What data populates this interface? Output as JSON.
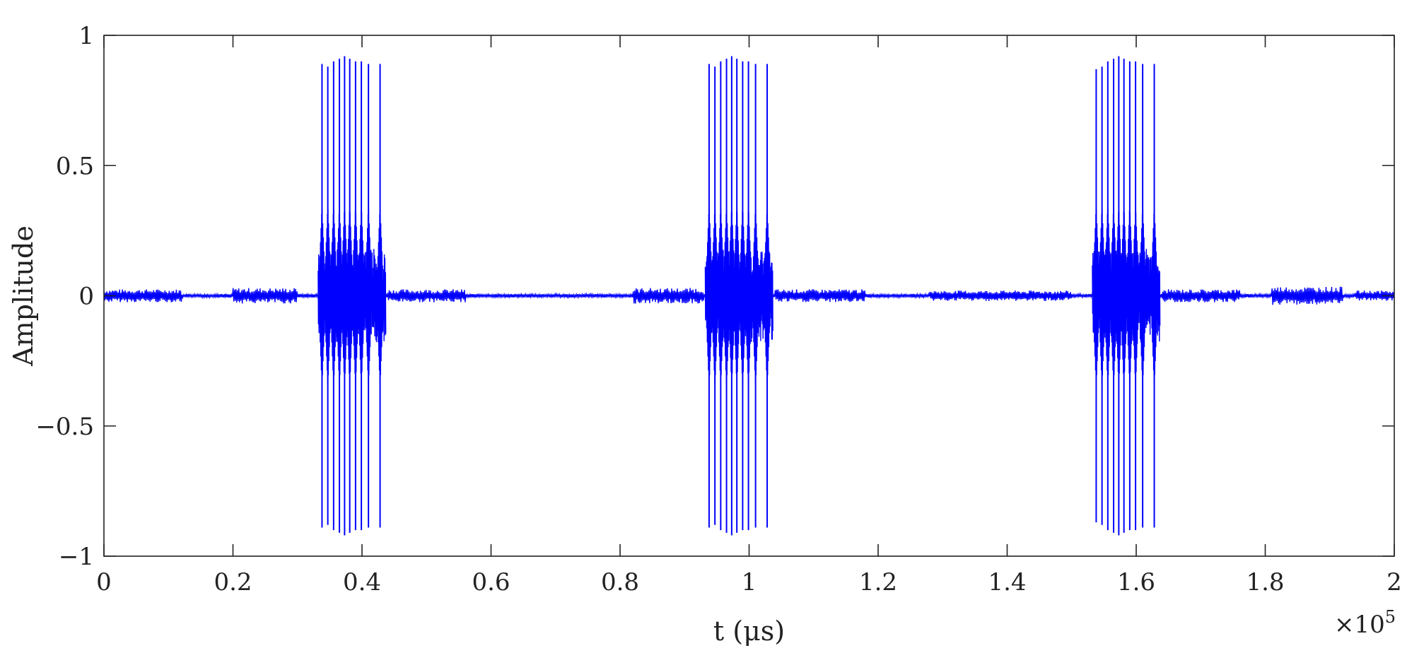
{
  "chart_data": {
    "type": "line",
    "title": "",
    "xlabel": "t (μs)",
    "ylabel": "Amplitude",
    "x_exponent_label": "×10",
    "x_exponent_power": "5",
    "x_scale": 100000,
    "xlim": [
      0,
      200000
    ],
    "ylim": [
      -1,
      1
    ],
    "grid": false,
    "line_color": "#0000ff",
    "axis_color": "#222222",
    "x_ticks": [
      0,
      0.2,
      0.4,
      0.6,
      0.8,
      1,
      1.2,
      1.4,
      1.6,
      1.8,
      2
    ],
    "x_tick_labels": [
      "0",
      "0.2",
      "0.4",
      "0.6",
      "0.8",
      "1",
      "1.2",
      "1.4",
      "1.6",
      "1.8",
      "2"
    ],
    "y_ticks": [
      1,
      0.5,
      0,
      -0.5,
      -1
    ],
    "y_tick_labels": [
      "1",
      "0.5",
      "0",
      "−0.5",
      "−1"
    ],
    "series": [
      {
        "bursts": [
          {
            "pulses_x": [
              33800,
              34700,
              35600,
              36500,
              37300,
              38100,
              39000,
              39900,
              41000,
              42800
            ],
            "pulses_peak": [
              0.89,
              0.88,
              0.9,
              0.91,
              0.92,
              0.91,
              0.9,
              0.9,
              0.89,
              0.89
            ]
          },
          {
            "pulses_x": [
              93800,
              94700,
              95600,
              96500,
              97300,
              98100,
              99000,
              99900,
              101000,
              102800
            ],
            "pulses_peak": [
              0.89,
              0.88,
              0.9,
              0.91,
              0.92,
              0.91,
              0.9,
              0.9,
              0.89,
              0.89
            ]
          },
          {
            "pulses_x": [
              153800,
              154700,
              155600,
              156500,
              157300,
              158100,
              159000,
              159900,
              161000,
              162800
            ],
            "pulses_peak": [
              0.87,
              0.88,
              0.9,
              0.91,
              0.92,
              0.91,
              0.9,
              0.9,
              0.89,
              0.89
            ]
          }
        ],
        "noise_amplitude": 0.02,
        "noise_clusters": [
          {
            "x": [
              0,
              12000
            ],
            "amp": 0.025
          },
          {
            "x": [
              20000,
              30000
            ],
            "amp": 0.03
          },
          {
            "x": [
              44000,
              56000
            ],
            "amp": 0.025
          },
          {
            "x": [
              82000,
              93000
            ],
            "amp": 0.03
          },
          {
            "x": [
              104000,
              118000
            ],
            "amp": 0.025
          },
          {
            "x": [
              128000,
              150000
            ],
            "amp": 0.02
          },
          {
            "x": [
              164000,
              176000
            ],
            "amp": 0.025
          },
          {
            "x": [
              181000,
              192000
            ],
            "amp": 0.035
          },
          {
            "x": [
              194000,
              200000
            ],
            "amp": 0.02
          }
        ]
      }
    ]
  }
}
